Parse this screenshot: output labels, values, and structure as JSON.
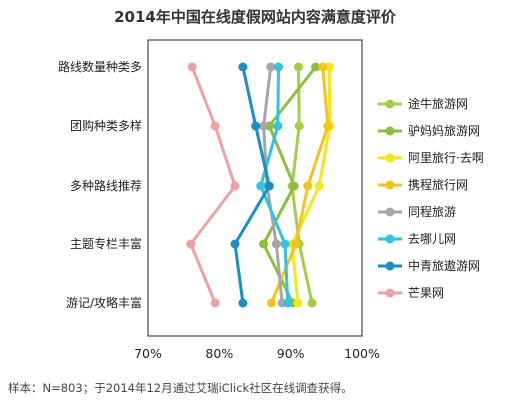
{
  "chart_data": {
    "type": "line",
    "orientation": "horizontal",
    "title": "2014年中国在线度假网站内容满意度评价",
    "categories": [
      "路线数量种类多",
      "团购种类多样",
      "多种路线推荐",
      "主题专栏丰富",
      "游记/攻略丰富"
    ],
    "x_ticks": [
      "70%",
      "80%",
      "90%",
      "100%"
    ],
    "xlim": [
      0.7,
      1.0
    ],
    "grid": false,
    "legend_position": "right",
    "series": [
      {
        "name": "途牛旅游网",
        "color": "#a6cc4a",
        "values": [
          0.911,
          0.912,
          0.902,
          0.912,
          0.93
        ]
      },
      {
        "name": "驴妈妈旅游网",
        "color": "#8cbf3c",
        "values": [
          0.935,
          0.87,
          0.905,
          0.862,
          0.903
        ]
      },
      {
        "name": "阿里旅行·去啊",
        "color": "#f2e61c",
        "values": [
          0.954,
          0.955,
          0.94,
          0.902,
          0.91
        ]
      },
      {
        "name": "携程旅行网",
        "color": "#f7c21c",
        "values": [
          0.945,
          0.952,
          0.924,
          0.907,
          0.873
        ]
      },
      {
        "name": "同程旅游",
        "color": "#a6a6a6",
        "values": [
          0.872,
          0.862,
          0.867,
          0.88,
          0.888
        ]
      },
      {
        "name": "去哪儿网",
        "color": "#33c2df",
        "values": [
          0.883,
          0.882,
          0.858,
          0.892,
          0.896
        ]
      },
      {
        "name": "中青旅遨游网",
        "color": "#1a8fc6",
        "values": [
          0.833,
          0.851,
          0.87,
          0.822,
          0.833
        ]
      },
      {
        "name": "芒果网",
        "color": "#f0a0a4",
        "values": [
          0.762,
          0.794,
          0.822,
          0.76,
          0.794
        ]
      }
    ]
  },
  "footnote": "样本：N=803；于2014年12月通过艾瑞iClick社区在线调查获得。"
}
